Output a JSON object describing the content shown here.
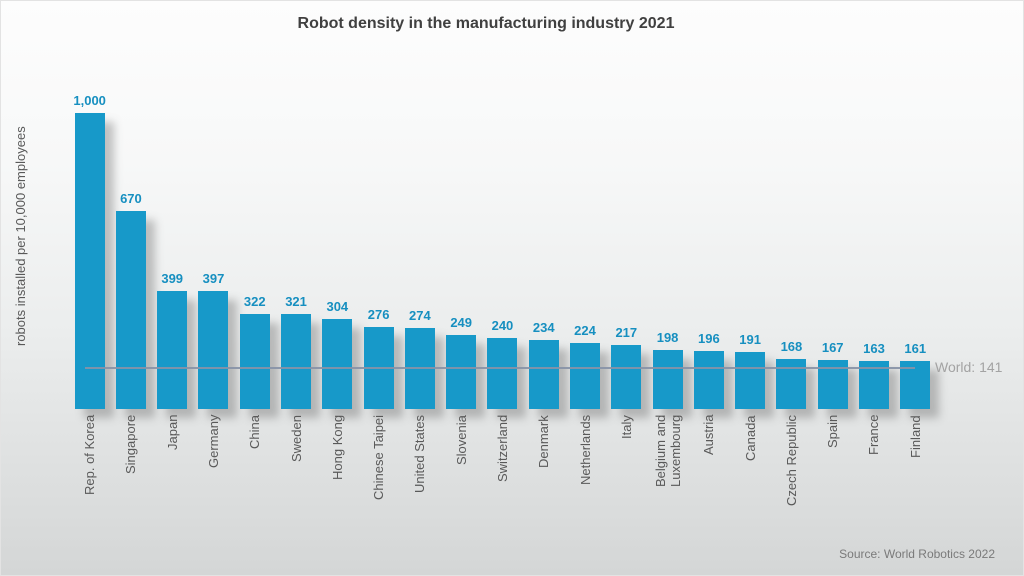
{
  "chart_data": {
    "type": "bar",
    "title": "Robot density in the manufacturing industry 2021",
    "ylabel": "robots installed per 10,000 employees",
    "xlabel": "",
    "ylim": [
      0,
      1000
    ],
    "grid": false,
    "legend": "none",
    "categories": [
      "Rep. of Korea",
      "Singapore",
      "Japan",
      "Germany",
      "China",
      "Sweden",
      "Hong Kong",
      "Chinese Taipei",
      "United States",
      "Slovenia",
      "Switzerland",
      "Denmark",
      "Netherlands",
      "Italy",
      "Belgium and\nLuxembourg",
      "Austria",
      "Canada",
      "Czech Republic",
      "Spain",
      "France",
      "Finland"
    ],
    "values": [
      1000,
      670,
      399,
      397,
      322,
      321,
      304,
      276,
      274,
      249,
      240,
      234,
      224,
      217,
      198,
      196,
      191,
      168,
      167,
      163,
      161
    ],
    "reference_line": {
      "value": 141,
      "label": "World: 141"
    },
    "source": "Source: World Robotics 2022",
    "colors": {
      "bar": "#1799c9",
      "value_label": "#168fc0",
      "reference_line": "#8793a7",
      "reference_label": "#a3a3a3",
      "title": "#404040",
      "axis_label": "#595959"
    }
  }
}
